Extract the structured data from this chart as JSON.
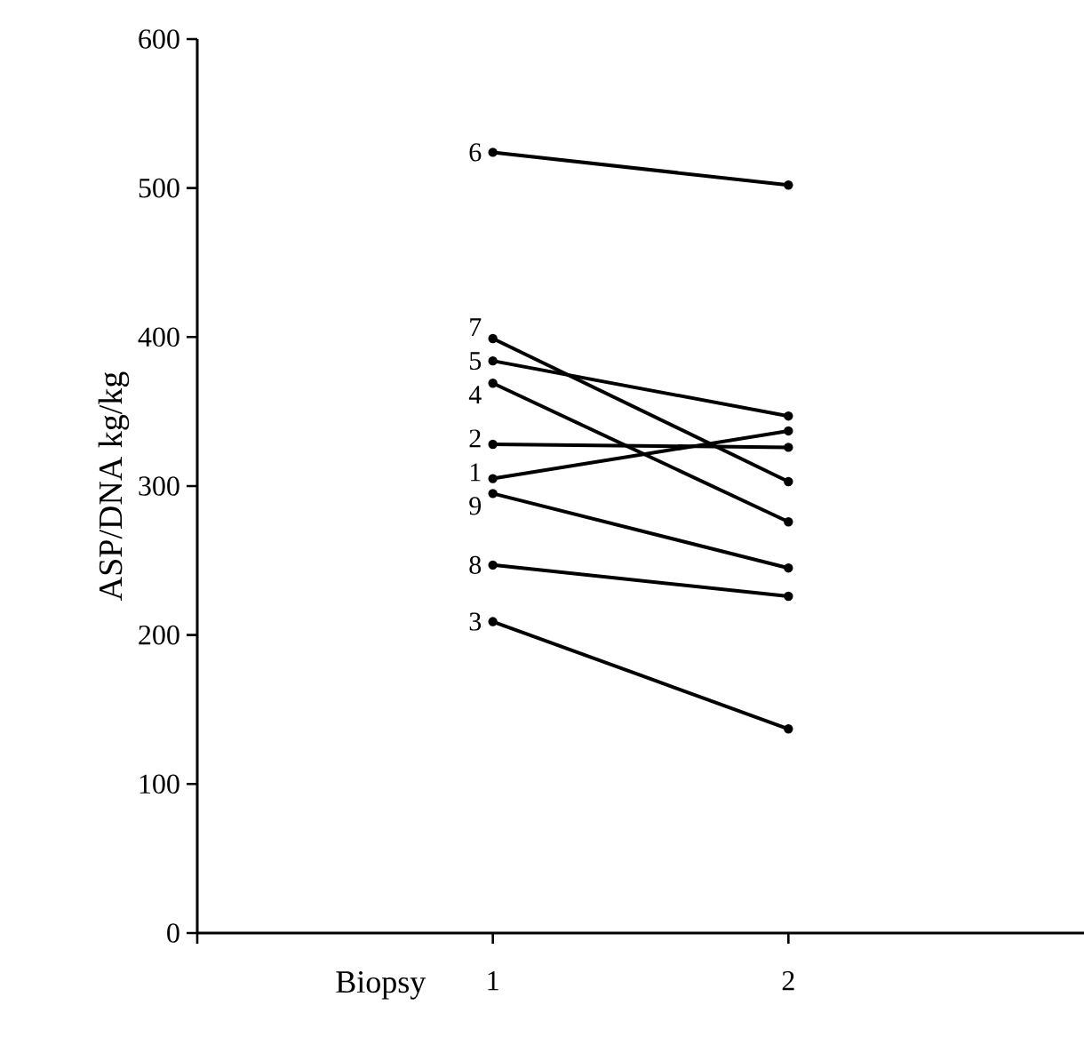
{
  "chart_data": {
    "type": "line",
    "ylabel": "ASP/DNA kg/kg",
    "xlabel": "Biopsy",
    "x": [
      1,
      2
    ],
    "xlim": [
      0,
      3
    ],
    "xticks": [
      {
        "value": 0,
        "label": null
      },
      1,
      2
    ],
    "ylim": [
      0,
      600
    ],
    "yticks": [
      0,
      100,
      200,
      300,
      400,
      500,
      600
    ],
    "marker": "circle",
    "line_style": "solid",
    "series": [
      {
        "name": "1",
        "color": "#000000",
        "values": [
          305,
          337
        ]
      },
      {
        "name": "2",
        "color": "#000000",
        "values": [
          328,
          326
        ]
      },
      {
        "name": "3",
        "color": "#000000",
        "values": [
          209,
          137
        ]
      },
      {
        "name": "4",
        "color": "#000000",
        "values": [
          369,
          276
        ]
      },
      {
        "name": "5",
        "color": "#000000",
        "values": [
          384,
          347
        ]
      },
      {
        "name": "6",
        "color": "#000000",
        "values": [
          524,
          502
        ]
      },
      {
        "name": "7",
        "color": "#000000",
        "values": [
          399,
          303
        ]
      },
      {
        "name": "8",
        "color": "#000000",
        "values": [
          247,
          226
        ]
      },
      {
        "name": "9",
        "color": "#000000",
        "values": [
          295,
          245
        ]
      }
    ]
  }
}
